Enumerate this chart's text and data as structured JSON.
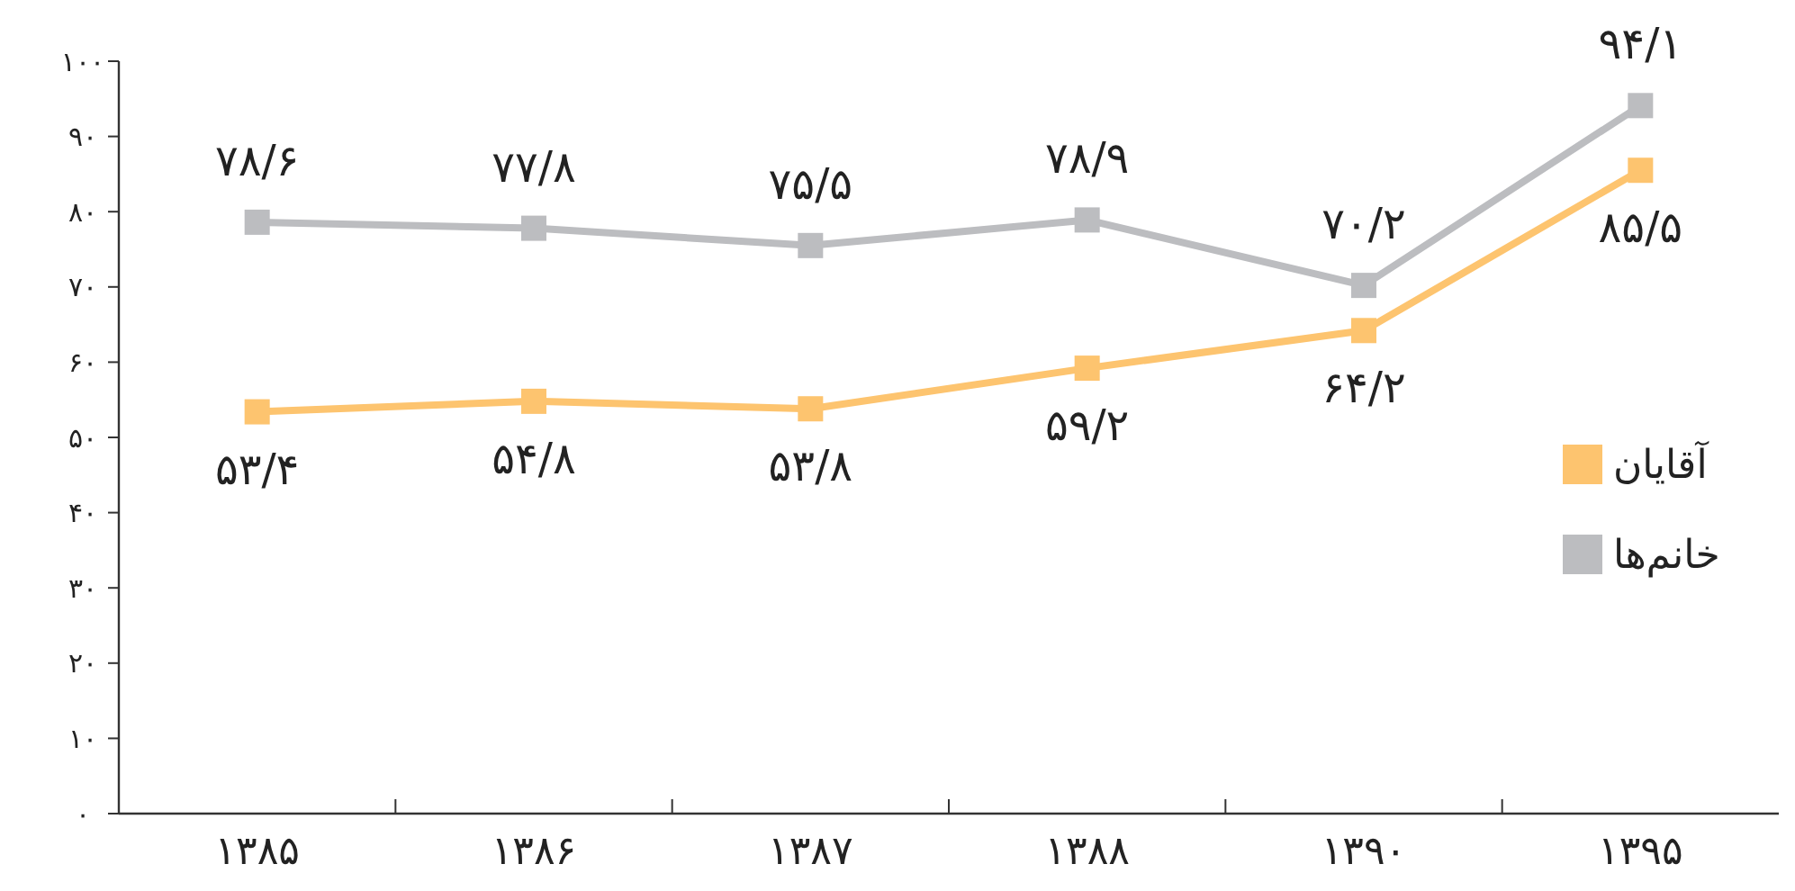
{
  "chart_data": {
    "type": "line",
    "categories": [
      "۱۳۸۵",
      "۱۳۸۶",
      "۱۳۸۷",
      "۱۳۸۸",
      "۱۳۹۰",
      "۱۳۹۵"
    ],
    "series": [
      {
        "name": "آقایان",
        "color": "#fdc46f",
        "values": [
          53.4,
          54.8,
          53.8,
          59.2,
          64.2,
          85.5
        ],
        "value_labels": [
          "۵۳/۴",
          "۵۴/۸",
          "۵۳/۸",
          "۵۹/۲",
          "۶۴/۲",
          "۸۵/۵"
        ]
      },
      {
        "name": "خانم‌ها",
        "color": "#bcbdc0",
        "values": [
          78.6,
          77.8,
          75.5,
          78.9,
          70.2,
          94.1
        ],
        "value_labels": [
          "۷۸/۶",
          "۷۷/۸",
          "۷۵/۵",
          "۷۸/۹",
          "۷۰/۲",
          "۹۴/۱"
        ]
      }
    ],
    "ylim": [
      0,
      100
    ],
    "yticks": [
      {
        "value": 0,
        "label": "۰"
      },
      {
        "value": 10,
        "label": "۱۰"
      },
      {
        "value": 20,
        "label": "۲۰"
      },
      {
        "value": 30,
        "label": "۳۰"
      },
      {
        "value": 40,
        "label": "۴۰"
      },
      {
        "value": 50,
        "label": "۵۰"
      },
      {
        "value": 60,
        "label": "۶۰"
      },
      {
        "value": 70,
        "label": "۷۰"
      },
      {
        "value": 80,
        "label": "۸۰"
      },
      {
        "value": 90,
        "label": "۹۰"
      },
      {
        "value": 100,
        "label": "۱۰۰"
      }
    ],
    "grid": false,
    "legend": "right",
    "marker": "square",
    "line_style": "solid"
  }
}
